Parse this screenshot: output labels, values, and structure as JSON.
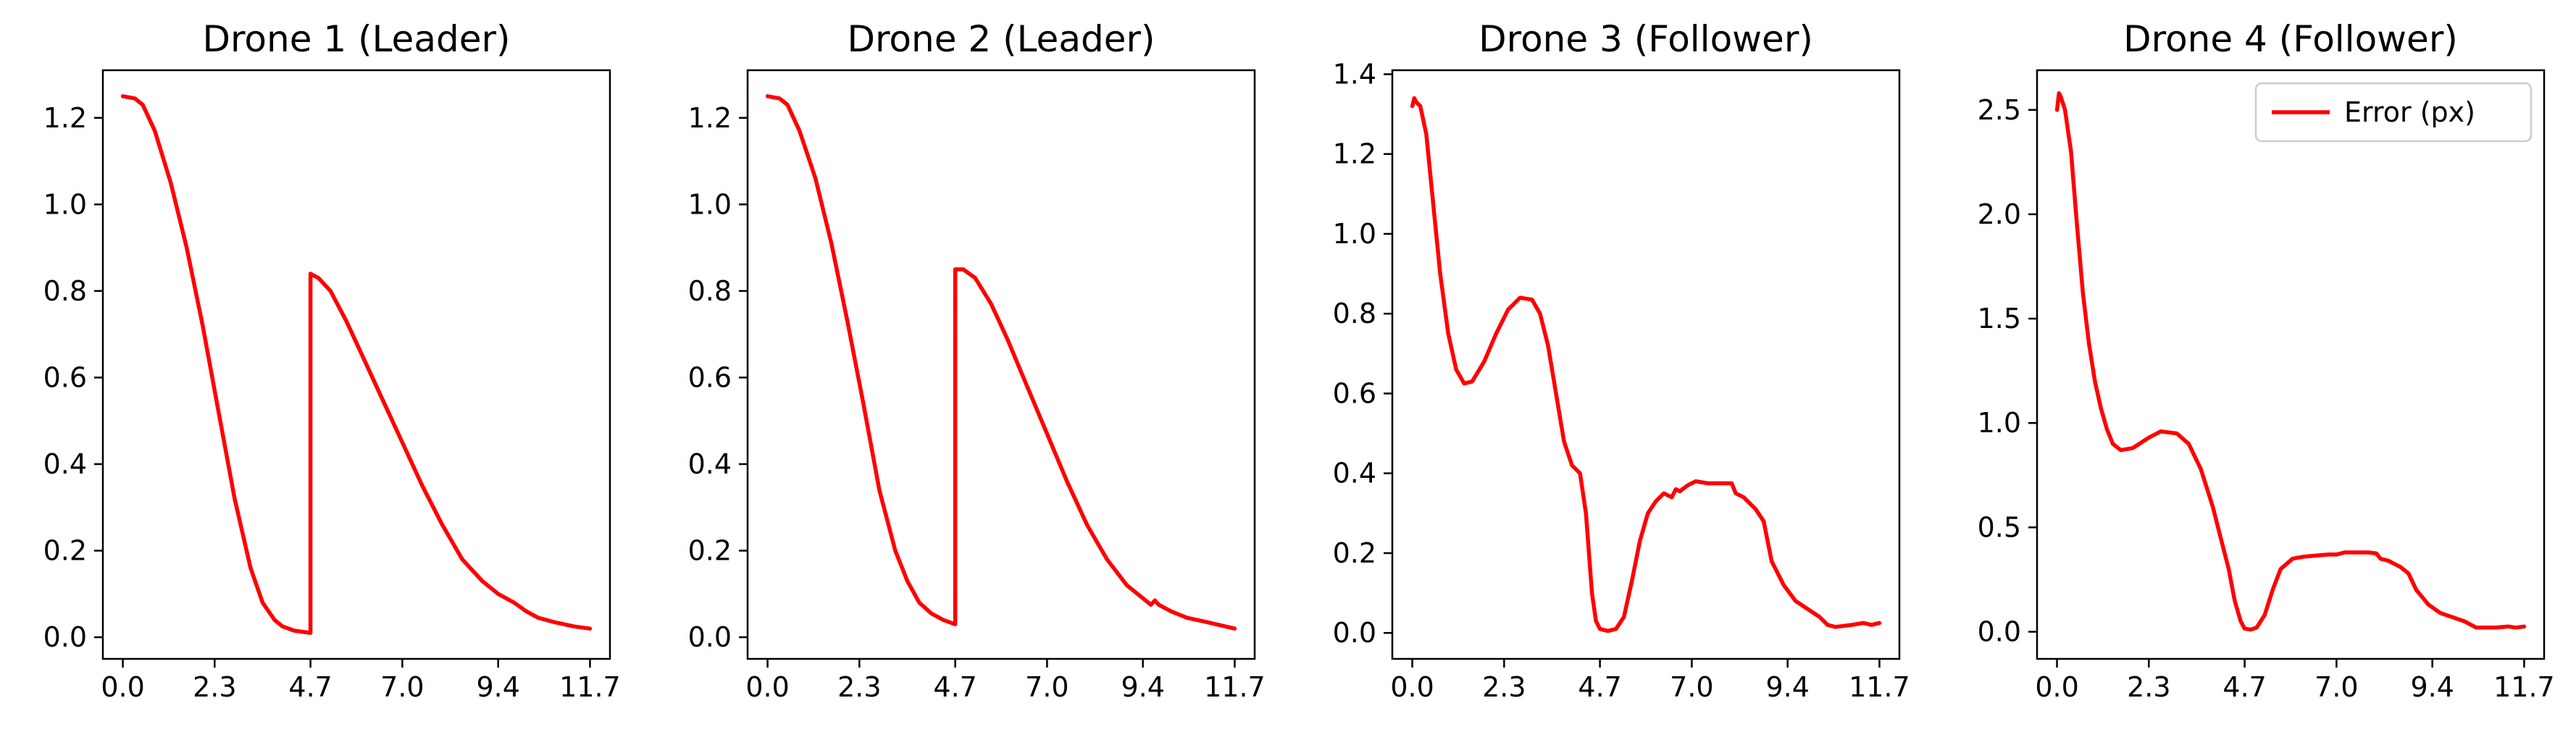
{
  "chart_data": [
    {
      "type": "line",
      "title": "Drone 1 (Leader)",
      "xlabel": "",
      "ylabel": "",
      "xlim": [
        -0.5,
        12.2
      ],
      "ylim": [
        -0.05,
        1.31
      ],
      "xticks": [
        0.0,
        2.3,
        4.7,
        7.0,
        9.4,
        11.7
      ],
      "xtick_labels": [
        "0.0",
        "2.3",
        "4.7",
        "7.0",
        "9.4",
        "11.7"
      ],
      "yticks": [
        0.0,
        0.2,
        0.4,
        0.6,
        0.8,
        1.0,
        1.2
      ],
      "ytick_labels": [
        "0.0",
        "0.2",
        "0.4",
        "0.6",
        "0.8",
        "1.0",
        "1.2"
      ],
      "grid": false,
      "legend": null,
      "series": [
        {
          "color": "#ff0000",
          "x": [
            0.0,
            0.3,
            0.5,
            0.8,
            1.2,
            1.6,
            2.0,
            2.4,
            2.8,
            3.2,
            3.5,
            3.8,
            4.0,
            4.3,
            4.7,
            4.7,
            4.9,
            5.2,
            5.6,
            6.0,
            6.5,
            7.0,
            7.5,
            8.0,
            8.5,
            9.0,
            9.4,
            9.8,
            10.1,
            10.4,
            10.8,
            11.3,
            11.7
          ],
          "y": [
            1.25,
            1.245,
            1.23,
            1.17,
            1.05,
            0.9,
            0.72,
            0.52,
            0.32,
            0.16,
            0.08,
            0.04,
            0.025,
            0.015,
            0.01,
            0.84,
            0.83,
            0.8,
            0.73,
            0.65,
            0.55,
            0.45,
            0.35,
            0.26,
            0.18,
            0.13,
            0.1,
            0.08,
            0.06,
            0.045,
            0.035,
            0.025,
            0.02
          ]
        }
      ]
    },
    {
      "type": "line",
      "title": "Drone 2 (Leader)",
      "xlabel": "",
      "ylabel": "",
      "xlim": [
        -0.5,
        12.2
      ],
      "ylim": [
        -0.05,
        1.31
      ],
      "xticks": [
        0.0,
        2.3,
        4.7,
        7.0,
        9.4,
        11.7
      ],
      "xtick_labels": [
        "0.0",
        "2.3",
        "4.7",
        "7.0",
        "9.4",
        "11.7"
      ],
      "yticks": [
        0.0,
        0.2,
        0.4,
        0.6,
        0.8,
        1.0,
        1.2
      ],
      "ytick_labels": [
        "0.0",
        "0.2",
        "0.4",
        "0.6",
        "0.8",
        "1.0",
        "1.2"
      ],
      "grid": false,
      "legend": null,
      "series": [
        {
          "color": "#ff0000",
          "x": [
            0.0,
            0.3,
            0.5,
            0.8,
            1.2,
            1.6,
            2.0,
            2.4,
            2.8,
            3.2,
            3.5,
            3.8,
            4.1,
            4.4,
            4.7,
            4.7,
            4.9,
            5.2,
            5.6,
            6.0,
            6.5,
            7.0,
            7.5,
            8.0,
            8.5,
            9.0,
            9.4,
            9.6,
            9.7,
            9.8,
            10.1,
            10.5,
            11.0,
            11.7
          ],
          "y": [
            1.25,
            1.245,
            1.23,
            1.17,
            1.06,
            0.91,
            0.73,
            0.54,
            0.34,
            0.2,
            0.13,
            0.08,
            0.055,
            0.04,
            0.03,
            0.85,
            0.85,
            0.83,
            0.77,
            0.69,
            0.58,
            0.47,
            0.36,
            0.26,
            0.18,
            0.12,
            0.09,
            0.075,
            0.085,
            0.075,
            0.06,
            0.045,
            0.035,
            0.02
          ]
        }
      ]
    },
    {
      "type": "line",
      "title": "Drone 3 (Follower)",
      "xlabel": "",
      "ylabel": "",
      "xlim": [
        -0.5,
        12.2
      ],
      "ylim": [
        -0.065,
        1.41
      ],
      "xticks": [
        0.0,
        2.3,
        4.7,
        7.0,
        9.4,
        11.7
      ],
      "xtick_labels": [
        "0.0",
        "2.3",
        "4.7",
        "7.0",
        "9.4",
        "11.7"
      ],
      "yticks": [
        0.0,
        0.2,
        0.4,
        0.6,
        0.8,
        1.0,
        1.2,
        1.4
      ],
      "ytick_labels": [
        "0.0",
        "0.2",
        "0.4",
        "0.6",
        "0.8",
        "1.0",
        "1.2",
        "1.4"
      ],
      "grid": false,
      "legend": null,
      "series": [
        {
          "color": "#ff0000",
          "x": [
            0.0,
            0.05,
            0.1,
            0.2,
            0.35,
            0.5,
            0.7,
            0.9,
            1.1,
            1.3,
            1.5,
            1.8,
            2.1,
            2.4,
            2.7,
            3.0,
            3.2,
            3.4,
            3.6,
            3.8,
            4.0,
            4.2,
            4.35,
            4.5,
            4.6,
            4.7,
            4.9,
            5.1,
            5.3,
            5.5,
            5.7,
            5.9,
            6.1,
            6.3,
            6.5,
            6.6,
            6.7,
            6.9,
            7.1,
            7.4,
            7.8,
            8.0,
            8.1,
            8.3,
            8.6,
            8.8,
            9.0,
            9.3,
            9.6,
            9.9,
            10.2,
            10.4,
            10.6,
            11.0,
            11.3,
            11.5,
            11.7
          ],
          "y": [
            1.32,
            1.34,
            1.33,
            1.32,
            1.25,
            1.1,
            0.9,
            0.75,
            0.66,
            0.625,
            0.63,
            0.68,
            0.75,
            0.81,
            0.84,
            0.835,
            0.8,
            0.72,
            0.6,
            0.48,
            0.42,
            0.4,
            0.3,
            0.1,
            0.03,
            0.01,
            0.005,
            0.01,
            0.04,
            0.13,
            0.23,
            0.3,
            0.33,
            0.35,
            0.34,
            0.36,
            0.355,
            0.37,
            0.38,
            0.375,
            0.375,
            0.375,
            0.35,
            0.34,
            0.31,
            0.28,
            0.18,
            0.12,
            0.08,
            0.06,
            0.04,
            0.02,
            0.015,
            0.02,
            0.025,
            0.02,
            0.025
          ]
        }
      ]
    },
    {
      "type": "line",
      "title": "Drone 4 (Follower)",
      "xlabel": "",
      "ylabel": "",
      "xlim": [
        -0.5,
        12.2
      ],
      "ylim": [
        -0.13,
        2.69
      ],
      "xticks": [
        0.0,
        2.3,
        4.7,
        7.0,
        9.4,
        11.7
      ],
      "xtick_labels": [
        "0.0",
        "2.3",
        "4.7",
        "7.0",
        "9.4",
        "11.7"
      ],
      "yticks": [
        0.0,
        0.5,
        1.0,
        1.5,
        2.0,
        2.5
      ],
      "ytick_labels": [
        "0.0",
        "0.5",
        "1.0",
        "1.5",
        "2.0",
        "2.5"
      ],
      "grid": false,
      "legend": {
        "position": "top-right",
        "entries": [
          "Error (px)"
        ]
      },
      "series": [
        {
          "name": "Error (px)",
          "color": "#ff0000",
          "x": [
            0.0,
            0.05,
            0.1,
            0.2,
            0.35,
            0.5,
            0.65,
            0.8,
            0.95,
            1.1,
            1.25,
            1.4,
            1.6,
            1.9,
            2.3,
            2.6,
            3.0,
            3.3,
            3.6,
            3.9,
            4.1,
            4.3,
            4.45,
            4.6,
            4.7,
            4.85,
            5.0,
            5.2,
            5.4,
            5.6,
            5.9,
            6.2,
            6.5,
            6.8,
            7.0,
            7.2,
            7.5,
            7.8,
            8.0,
            8.1,
            8.3,
            8.6,
            8.8,
            9.0,
            9.3,
            9.6,
            9.9,
            10.2,
            10.5,
            11.0,
            11.3,
            11.5,
            11.7
          ],
          "y": [
            2.5,
            2.58,
            2.56,
            2.5,
            2.3,
            1.95,
            1.62,
            1.38,
            1.2,
            1.07,
            0.97,
            0.9,
            0.87,
            0.88,
            0.93,
            0.96,
            0.95,
            0.9,
            0.78,
            0.6,
            0.45,
            0.3,
            0.15,
            0.05,
            0.015,
            0.01,
            0.02,
            0.08,
            0.2,
            0.3,
            0.35,
            0.36,
            0.365,
            0.37,
            0.37,
            0.38,
            0.38,
            0.38,
            0.375,
            0.35,
            0.34,
            0.31,
            0.28,
            0.2,
            0.13,
            0.09,
            0.07,
            0.05,
            0.02,
            0.02,
            0.025,
            0.02,
            0.025
          ]
        }
      ]
    }
  ]
}
